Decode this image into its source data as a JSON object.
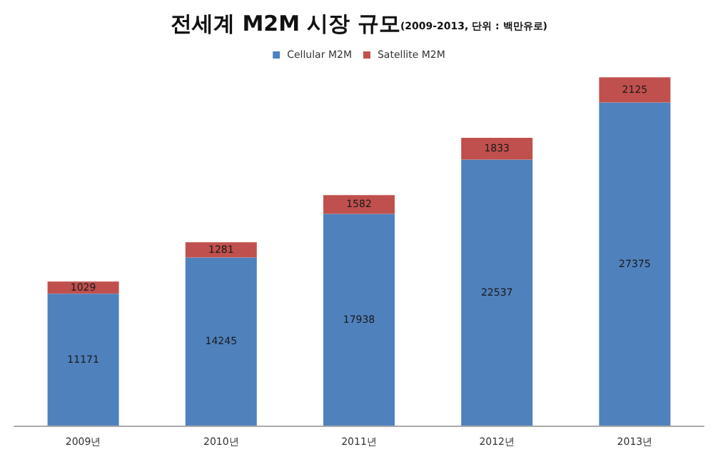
{
  "chart_data": {
    "type": "bar",
    "title": "전세계 M2M 시장 규모",
    "subtitle": "(2009-2013, 단위 : 백만유로)",
    "categories": [
      "2009년",
      "2010년",
      "2011년",
      "2012년",
      "2013년"
    ],
    "series": [
      {
        "name": "Cellular M2M",
        "color": "#4f81bd",
        "values": [
          11171,
          14245,
          17938,
          22537,
          27375
        ]
      },
      {
        "name": "Satellite M2M",
        "color": "#c0504d",
        "values": [
          1029,
          1281,
          1582,
          1833,
          2125
        ]
      }
    ],
    "stacked": true,
    "data_labels": true,
    "legend": "top"
  }
}
